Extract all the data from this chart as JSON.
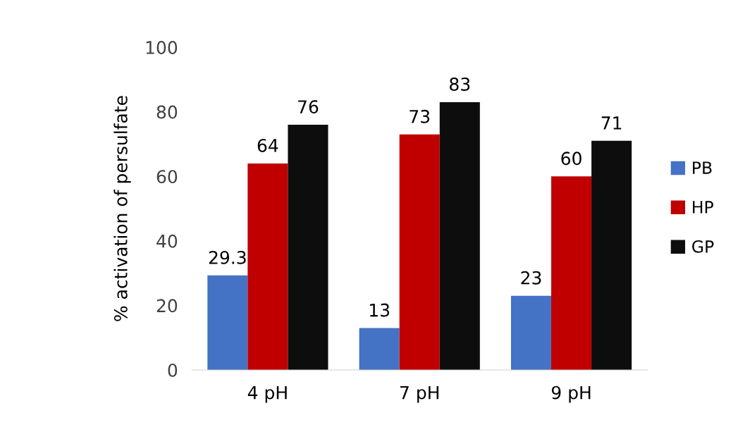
{
  "chart_data": {
    "type": "bar",
    "ylabel": "% activation of persulfate",
    "categories": [
      "4 pH",
      "7 pH",
      "9 pH"
    ],
    "series": [
      {
        "name": "PB",
        "color": "#4472c4",
        "values": [
          29.3,
          13,
          23
        ]
      },
      {
        "name": "HP",
        "color": "#c00000",
        "values": [
          64,
          73,
          60
        ]
      },
      {
        "name": "GP",
        "color": "#0d0d0d",
        "values": [
          76,
          83,
          71
        ]
      }
    ],
    "ylim": [
      0,
      100
    ],
    "yticks": [
      0,
      20,
      40,
      60,
      80,
      100
    ],
    "grid": false,
    "legend": "right",
    "data_labels": true
  }
}
